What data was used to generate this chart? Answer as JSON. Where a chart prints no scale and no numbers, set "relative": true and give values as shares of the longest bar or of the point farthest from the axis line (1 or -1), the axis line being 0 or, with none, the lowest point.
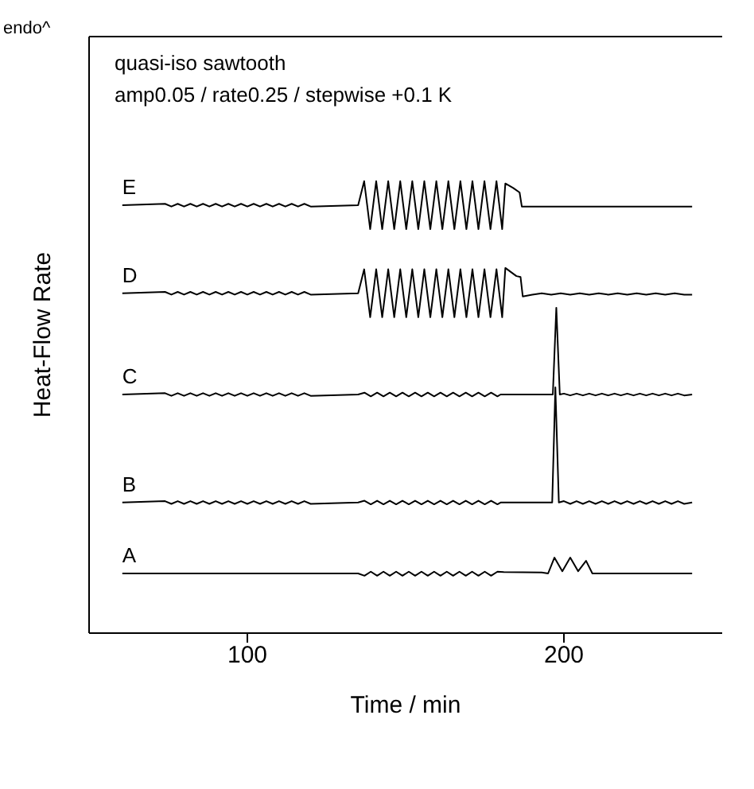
{
  "chart_data": {
    "type": "line",
    "relative": true,
    "title": "quasi-iso sawtooth",
    "subtitle": "amp0.05 / rate0.25 / stepwise +0.1 K",
    "xlabel": "Time / min",
    "ylabel": "Heat-Flow Rate",
    "annotations": [
      "endo^"
    ],
    "xlim": [
      50,
      250
    ],
    "xticks": [
      100,
      200
    ],
    "grid": false,
    "legend": false,
    "marker": "none",
    "line_style": "solid",
    "series": [
      {
        "name": "E",
        "color": "#000000",
        "x": [
          60.5,
          74,
          76,
          78,
          80,
          82,
          84,
          86,
          88,
          90,
          92,
          94,
          96,
          98,
          100,
          102,
          104,
          106,
          108,
          110,
          112,
          114,
          116,
          118,
          120,
          135,
          136.9,
          138.8,
          140.7,
          142.6,
          144.5,
          146.4,
          148.3,
          150.2,
          152.1,
          154,
          155.9,
          157.8,
          159.7,
          161.6,
          163.5,
          165.4,
          167.3,
          169.2,
          171.1,
          173,
          174.9,
          176.8,
          178.7,
          180.5,
          181.5,
          184,
          186,
          186.7,
          240.5
        ],
        "values": [
          0.947,
          0.95,
          0.944,
          0.95,
          0.944,
          0.95,
          0.944,
          0.95,
          0.944,
          0.95,
          0.944,
          0.95,
          0.944,
          0.95,
          0.944,
          0.95,
          0.944,
          0.95,
          0.944,
          0.95,
          0.944,
          0.95,
          0.944,
          0.95,
          0.944,
          0.947,
          1,
          0.894,
          1,
          0.894,
          1,
          0.894,
          1,
          0.894,
          1,
          0.894,
          1,
          0.894,
          1,
          0.894,
          1,
          0.894,
          1,
          0.894,
          1,
          0.894,
          1,
          0.894,
          1,
          0.894,
          0.995,
          0.985,
          0.975,
          0.944,
          0.944
        ]
      },
      {
        "name": "D",
        "color": "#000000",
        "x": [
          60.5,
          74,
          76,
          78,
          80,
          82,
          84,
          86,
          88,
          90,
          92,
          94,
          96,
          98,
          100,
          102,
          104,
          106,
          108,
          110,
          112,
          114,
          116,
          118,
          120,
          135,
          136.9,
          138.8,
          140.7,
          142.6,
          144.5,
          146.4,
          148.3,
          150.2,
          152.1,
          154,
          155.9,
          157.8,
          159.7,
          161.6,
          163.5,
          165.4,
          167.3,
          169.2,
          171.1,
          173,
          174.9,
          176.8,
          178.7,
          180.5,
          181.5,
          185,
          186.3,
          187,
          190,
          193,
          196,
          199,
          202,
          205,
          208,
          211,
          214,
          217,
          220,
          223,
          226,
          229,
          232,
          235,
          238,
          240.5
        ],
        "values": [
          0.752,
          0.755,
          0.749,
          0.755,
          0.749,
          0.755,
          0.749,
          0.755,
          0.749,
          0.755,
          0.749,
          0.755,
          0.749,
          0.755,
          0.749,
          0.755,
          0.749,
          0.755,
          0.749,
          0.755,
          0.749,
          0.755,
          0.749,
          0.755,
          0.749,
          0.752,
          0.805,
          0.699,
          0.805,
          0.699,
          0.805,
          0.699,
          0.805,
          0.699,
          0.805,
          0.699,
          0.805,
          0.699,
          0.805,
          0.699,
          0.805,
          0.699,
          0.805,
          0.699,
          0.805,
          0.699,
          0.805,
          0.699,
          0.805,
          0.699,
          0.808,
          0.79,
          0.788,
          0.745,
          0.749,
          0.752,
          0.749,
          0.752,
          0.749,
          0.752,
          0.749,
          0.752,
          0.749,
          0.752,
          0.749,
          0.752,
          0.749,
          0.752,
          0.749,
          0.752,
          0.749,
          0.749
        ]
      },
      {
        "name": "C",
        "color": "#000000",
        "x": [
          60.5,
          74,
          76,
          78,
          80,
          82,
          84,
          86,
          88,
          90,
          92,
          94,
          96,
          98,
          100,
          102,
          104,
          106,
          108,
          110,
          112,
          114,
          116,
          118,
          120,
          135,
          137,
          139,
          141,
          143,
          145,
          147,
          149,
          151,
          153,
          155,
          157,
          159,
          161,
          163,
          165,
          167,
          169,
          171,
          173,
          175,
          177,
          179,
          180,
          196.5,
          197.6,
          198.7,
          200,
          202,
          204,
          206,
          208,
          210,
          212,
          214,
          216,
          218,
          220,
          222,
          224,
          226,
          228,
          230,
          232,
          234,
          236,
          238,
          240.5
        ],
        "values": [
          0.528,
          0.531,
          0.525,
          0.531,
          0.525,
          0.531,
          0.525,
          0.531,
          0.525,
          0.531,
          0.525,
          0.531,
          0.525,
          0.531,
          0.525,
          0.531,
          0.525,
          0.531,
          0.525,
          0.531,
          0.525,
          0.531,
          0.525,
          0.531,
          0.525,
          0.528,
          0.532,
          0.524,
          0.532,
          0.524,
          0.532,
          0.524,
          0.532,
          0.524,
          0.532,
          0.524,
          0.532,
          0.524,
          0.532,
          0.524,
          0.532,
          0.524,
          0.532,
          0.524,
          0.532,
          0.524,
          0.532,
          0.524,
          0.528,
          0.528,
          0.72,
          0.528,
          0.53,
          0.526,
          0.53,
          0.526,
          0.53,
          0.526,
          0.53,
          0.526,
          0.53,
          0.526,
          0.53,
          0.526,
          0.53,
          0.526,
          0.53,
          0.526,
          0.53,
          0.526,
          0.53,
          0.526,
          0.528
        ]
      },
      {
        "name": "B",
        "color": "#000000",
        "x": [
          60.5,
          74,
          76,
          78,
          80,
          82,
          84,
          86,
          88,
          90,
          92,
          94,
          96,
          98,
          100,
          102,
          104,
          106,
          108,
          110,
          112,
          114,
          116,
          118,
          120,
          135,
          137,
          139,
          141,
          143,
          145,
          147,
          149,
          151,
          153,
          155,
          157,
          159,
          161,
          163,
          165,
          167,
          169,
          171,
          173,
          175,
          177,
          179,
          180,
          196.3,
          197.3,
          198.4,
          200,
          202,
          204,
          206,
          208,
          210,
          212,
          214,
          216,
          218,
          220,
          222,
          224,
          226,
          228,
          230,
          232,
          234,
          236,
          238,
          240.5
        ],
        "values": [
          0.289,
          0.292,
          0.286,
          0.292,
          0.286,
          0.292,
          0.286,
          0.292,
          0.286,
          0.292,
          0.286,
          0.292,
          0.286,
          0.292,
          0.286,
          0.292,
          0.286,
          0.292,
          0.286,
          0.292,
          0.286,
          0.292,
          0.286,
          0.292,
          0.286,
          0.289,
          0.293,
          0.285,
          0.293,
          0.285,
          0.293,
          0.285,
          0.293,
          0.285,
          0.293,
          0.285,
          0.293,
          0.285,
          0.293,
          0.285,
          0.293,
          0.285,
          0.293,
          0.285,
          0.293,
          0.285,
          0.293,
          0.285,
          0.289,
          0.289,
          0.544,
          0.289,
          0.292,
          0.286,
          0.292,
          0.286,
          0.292,
          0.286,
          0.292,
          0.286,
          0.292,
          0.286,
          0.292,
          0.286,
          0.292,
          0.286,
          0.292,
          0.286,
          0.292,
          0.286,
          0.292,
          0.286,
          0.289
        ]
      },
      {
        "name": "A",
        "color": "#000000",
        "x": [
          60.5,
          135,
          137,
          139,
          141,
          143,
          145,
          147,
          149,
          151,
          153,
          155,
          157,
          159,
          161,
          163,
          165,
          167,
          169,
          171,
          173,
          175,
          177,
          179,
          181,
          193,
          195,
          197,
          199.5,
          202,
          204.5,
          207,
          209,
          240.5
        ],
        "values": [
          0.132,
          0.132,
          0.127,
          0.136,
          0.127,
          0.136,
          0.127,
          0.136,
          0.127,
          0.136,
          0.127,
          0.136,
          0.127,
          0.136,
          0.127,
          0.136,
          0.127,
          0.136,
          0.127,
          0.136,
          0.127,
          0.136,
          0.127,
          0.136,
          0.135,
          0.134,
          0.132,
          0.167,
          0.137,
          0.167,
          0.137,
          0.16,
          0.132,
          0.132
        ]
      }
    ]
  }
}
